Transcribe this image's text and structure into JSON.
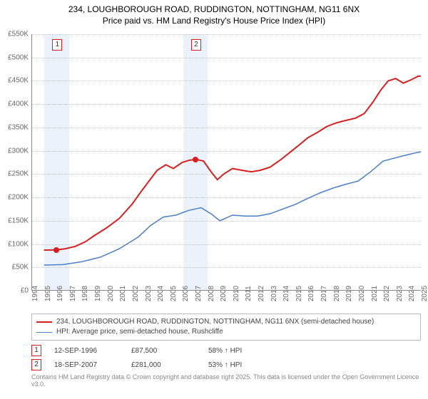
{
  "title_line1": "234, LOUGHBOROUGH ROAD, RUDDINGTON, NOTTINGHAM, NG11 6NX",
  "title_line2": "Price paid vs. HM Land Registry's House Price Index (HPI)",
  "chart": {
    "type": "line",
    "background_color": "#ffffff",
    "grid_color": "#c8c8c8",
    "axis_color": "#888888",
    "label_fontsize": 10,
    "x_years": [
      1994,
      1995,
      1996,
      1997,
      1998,
      1999,
      2000,
      2001,
      2002,
      2003,
      2004,
      2005,
      2006,
      2007,
      2008,
      2009,
      2010,
      2011,
      2012,
      2013,
      2014,
      2015,
      2016,
      2017,
      2018,
      2019,
      2020,
      2021,
      2022,
      2023,
      2024,
      2025
    ],
    "xlim": [
      1994,
      2025
    ],
    "ylim": [
      0,
      550
    ],
    "ytick_step": 50,
    "ytick_labels": [
      "£0",
      "£50K",
      "£100K",
      "£150K",
      "£200K",
      "£250K",
      "£300K",
      "£350K",
      "£400K",
      "£450K",
      "£500K",
      "£550K"
    ],
    "bands": [
      {
        "start": 1995.0,
        "end": 1997.0,
        "color": "rgba(70,130,230,0.10)"
      },
      {
        "start": 2006.1,
        "end": 2008.0,
        "color": "rgba(70,130,230,0.10)"
      }
    ],
    "markers": [
      {
        "label": "1",
        "x": 1996.0,
        "y_box": 540,
        "dot_y": 87.5
      },
      {
        "label": "2",
        "x": 2007.05,
        "y_box": 540,
        "dot_y": 281
      }
    ],
    "series": [
      {
        "name": "234, LOUGHBOROUGH ROAD, RUDDINGTON, NOTTINGHAM, NG11 6NX (semi-detached house)",
        "color": "#d62020",
        "line_width": 2,
        "points": [
          [
            1995.0,
            87
          ],
          [
            1996.0,
            87.5
          ],
          [
            1996.7,
            90
          ],
          [
            1997.5,
            95
          ],
          [
            1998.3,
            105
          ],
          [
            1999.0,
            118
          ],
          [
            2000.0,
            135
          ],
          [
            2001.0,
            155
          ],
          [
            2002.0,
            185
          ],
          [
            2002.8,
            215
          ],
          [
            2003.5,
            240
          ],
          [
            2004.0,
            258
          ],
          [
            2004.7,
            270
          ],
          [
            2005.3,
            262
          ],
          [
            2006.0,
            275
          ],
          [
            2006.6,
            280
          ],
          [
            2007.2,
            281
          ],
          [
            2007.7,
            278
          ],
          [
            2008.3,
            255
          ],
          [
            2008.8,
            238
          ],
          [
            2009.3,
            250
          ],
          [
            2010.0,
            262
          ],
          [
            2010.8,
            258
          ],
          [
            2011.5,
            255
          ],
          [
            2012.2,
            258
          ],
          [
            2013.0,
            265
          ],
          [
            2013.8,
            280
          ],
          [
            2014.5,
            295
          ],
          [
            2015.2,
            310
          ],
          [
            2016.0,
            328
          ],
          [
            2016.8,
            340
          ],
          [
            2017.5,
            352
          ],
          [
            2018.3,
            360
          ],
          [
            2019.0,
            365
          ],
          [
            2019.8,
            370
          ],
          [
            2020.5,
            380
          ],
          [
            2021.2,
            405
          ],
          [
            2021.8,
            430
          ],
          [
            2022.4,
            450
          ],
          [
            2023.0,
            455
          ],
          [
            2023.6,
            445
          ],
          [
            2024.2,
            452
          ],
          [
            2024.8,
            460
          ],
          [
            2025.0,
            460
          ]
        ]
      },
      {
        "name": "HPI: Average price, semi-detached house, Rushcliffe",
        "color": "#4b7fc9",
        "line_width": 1.5,
        "points": [
          [
            1995.0,
            55
          ],
          [
            1996.5,
            56
          ],
          [
            1998.0,
            62
          ],
          [
            1999.5,
            72
          ],
          [
            2001.0,
            90
          ],
          [
            2002.5,
            115
          ],
          [
            2003.5,
            140
          ],
          [
            2004.5,
            158
          ],
          [
            2005.5,
            162
          ],
          [
            2006.5,
            172
          ],
          [
            2007.5,
            178
          ],
          [
            2008.3,
            165
          ],
          [
            2009.0,
            150
          ],
          [
            2010.0,
            162
          ],
          [
            2011.0,
            160
          ],
          [
            2012.0,
            160
          ],
          [
            2013.0,
            165
          ],
          [
            2014.0,
            175
          ],
          [
            2015.0,
            185
          ],
          [
            2016.0,
            198
          ],
          [
            2017.0,
            210
          ],
          [
            2018.0,
            220
          ],
          [
            2019.0,
            228
          ],
          [
            2020.0,
            235
          ],
          [
            2021.0,
            255
          ],
          [
            2022.0,
            278
          ],
          [
            2023.0,
            285
          ],
          [
            2024.0,
            292
          ],
          [
            2025.0,
            298
          ]
        ]
      }
    ]
  },
  "legend": {
    "series1_label": "234, LOUGHBOROUGH ROAD, RUDDINGTON, NOTTINGHAM, NG11 6NX (semi-detached house)",
    "series2_label": "HPI: Average price, semi-detached house, Rushcliffe"
  },
  "transactions": [
    {
      "marker": "1",
      "date": "12-SEP-1996",
      "price": "£87,500",
      "pct": "58% ↑ HPI"
    },
    {
      "marker": "2",
      "date": "18-SEP-2007",
      "price": "£281,000",
      "pct": "53% ↑ HPI"
    }
  ],
  "marker_color": "#d62020",
  "attribution": "Contains HM Land Registry data © Crown copyright and database right 2025. This data is licensed under the Open Government Licence v3.0."
}
